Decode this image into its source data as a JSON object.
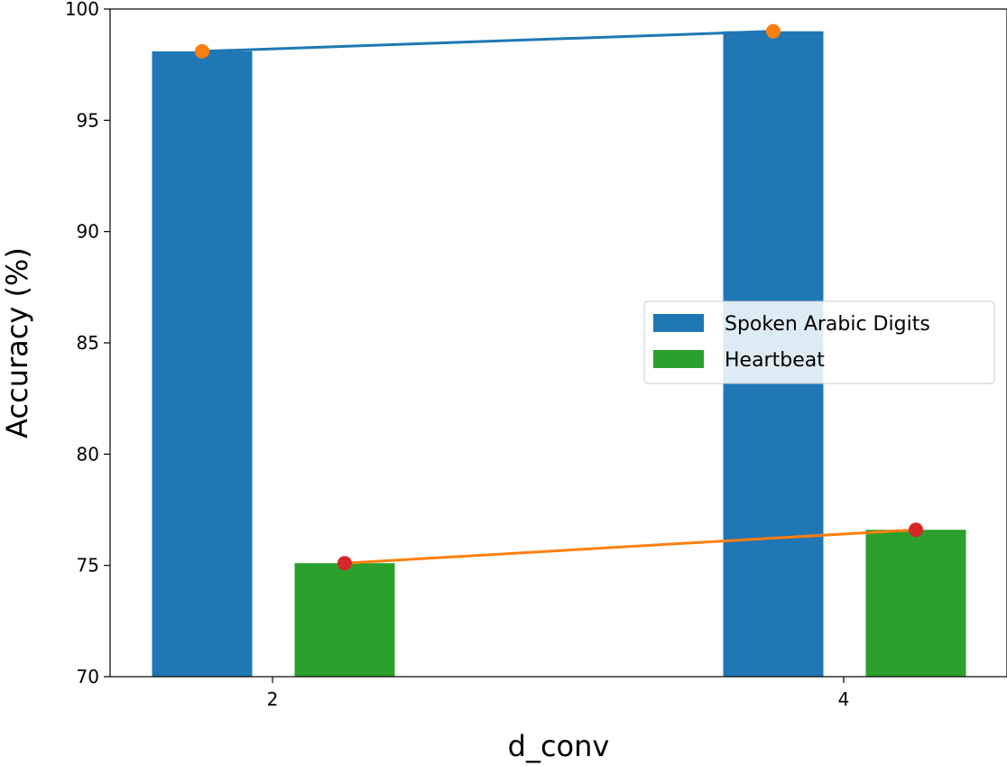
{
  "chart_data": {
    "type": "bar",
    "categories": [
      "2",
      "4"
    ],
    "xlabel": "d_conv",
    "ylabel": "Accuracy (%)",
    "ylim": [
      70,
      100
    ],
    "yticks": [
      "70",
      "75",
      "80",
      "85",
      "90",
      "95",
      "100"
    ],
    "grid": false,
    "legend_position": "center-right",
    "series": [
      {
        "name": "Spoken Arabic Digits",
        "values": [
          98.1,
          99.0
        ],
        "color": "#1f77b4",
        "line_color": "#1f77b4",
        "marker_color": "#ff7f0e"
      },
      {
        "name": "Heartbeat",
        "values": [
          75.1,
          76.6
        ],
        "color": "#2ca02c",
        "line_color": "#ff7f0e",
        "marker_color": "#d62728"
      }
    ]
  }
}
